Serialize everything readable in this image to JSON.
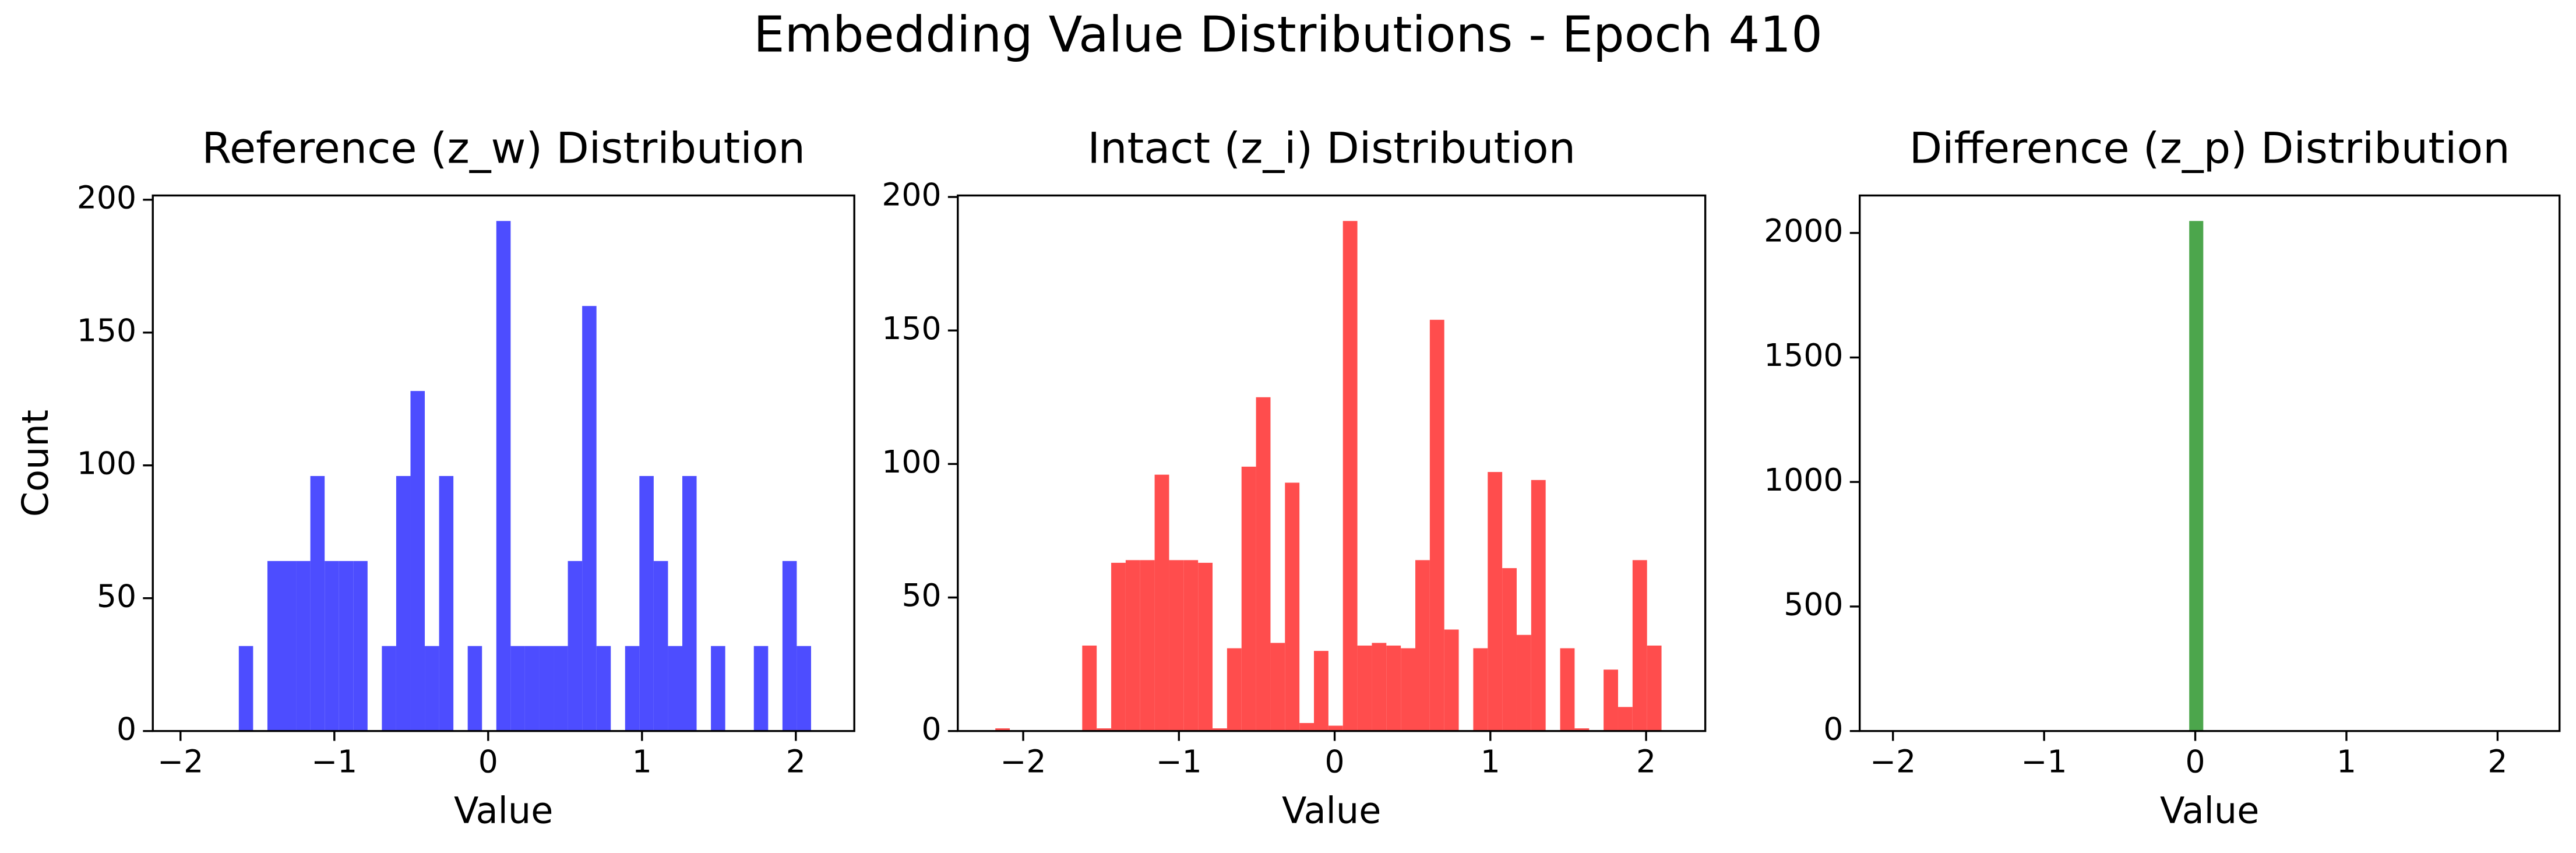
{
  "title": "Embedding Value Distributions - Epoch 410",
  "chart_data": [
    {
      "type": "histogram",
      "title": "Reference (z_w) Distribution",
      "xlabel": "Value",
      "ylabel": "Count",
      "color": "#4d4dff",
      "bins": [
        -1.993,
        -1.9,
        -1.807,
        -1.714,
        -1.621,
        -1.528,
        -1.435,
        -1.342,
        -1.249,
        -1.156,
        -1.063,
        -0.97,
        -0.877,
        -0.784,
        -0.691,
        -0.598,
        -0.505,
        -0.412,
        -0.319,
        -0.226,
        -0.133,
        -0.04,
        0.053,
        0.146,
        0.239,
        0.332,
        0.425,
        0.518,
        0.611,
        0.704,
        0.797,
        0.89,
        0.983,
        1.076,
        1.169,
        1.262,
        1.355,
        1.448,
        1.541,
        1.634,
        1.727,
        1.82,
        1.913,
        2.006,
        2.099
      ],
      "values": [
        0,
        0,
        0,
        0,
        32,
        0,
        64,
        64,
        64,
        96,
        64,
        64,
        64,
        0,
        32,
        96,
        128,
        32,
        96,
        0,
        32,
        0,
        192,
        32,
        32,
        32,
        32,
        64,
        160,
        32,
        0,
        32,
        96,
        64,
        32,
        96,
        0,
        32,
        0,
        0,
        32,
        0,
        64,
        32
      ],
      "xlim": [
        -2.18,
        2.38
      ],
      "ylim": [
        0,
        201.6
      ],
      "xticks": [
        {
          "value": -2,
          "label": "−2"
        },
        {
          "value": -1,
          "label": "−1"
        },
        0,
        1,
        2
      ],
      "yticks": [
        0,
        50,
        100,
        150,
        200
      ]
    },
    {
      "type": "histogram",
      "title": "Intact (z_i) Distribution",
      "xlabel": "Value",
      "color": "#ff4d4d",
      "bins": [
        -2.179,
        -2.086,
        -1.993,
        -1.9,
        -1.807,
        -1.714,
        -1.621,
        -1.528,
        -1.435,
        -1.342,
        -1.249,
        -1.156,
        -1.063,
        -0.97,
        -0.877,
        -0.784,
        -0.691,
        -0.598,
        -0.505,
        -0.412,
        -0.319,
        -0.226,
        -0.133,
        -0.04,
        0.053,
        0.146,
        0.239,
        0.332,
        0.425,
        0.518,
        0.611,
        0.704,
        0.797,
        0.89,
        0.983,
        1.076,
        1.169,
        1.262,
        1.355,
        1.448,
        1.541,
        1.634,
        1.727,
        1.82,
        1.913,
        2.006,
        2.099
      ],
      "values": [
        1,
        0,
        0,
        0,
        0,
        0,
        32,
        1,
        63,
        64,
        64,
        96,
        64,
        64,
        63,
        1,
        31,
        99,
        125,
        33,
        93,
        3,
        30,
        2,
        191,
        32,
        33,
        32,
        31,
        64,
        154,
        38,
        0,
        31,
        97,
        61,
        36,
        94,
        0,
        31,
        1,
        0,
        23,
        9,
        64,
        32
      ],
      "xlim": [
        -2.42,
        2.38
      ],
      "ylim": [
        0,
        200.55
      ],
      "xticks": [
        {
          "value": -2,
          "label": "−2"
        },
        {
          "value": -1,
          "label": "−1"
        },
        0,
        1,
        2
      ],
      "yticks": [
        0,
        50,
        100,
        150,
        200
      ]
    },
    {
      "type": "histogram",
      "title": "Difference (z_p) Distribution",
      "xlabel": "Value",
      "color": "#4ca64c",
      "bins": [
        -0.04,
        0.053
      ],
      "values": [
        2048
      ],
      "xlim": [
        -2.22,
        2.41
      ],
      "ylim": [
        0,
        2150.4
      ],
      "xticks": [
        {
          "value": -2,
          "label": "−2"
        },
        {
          "value": -1,
          "label": "−1"
        },
        0,
        1,
        2
      ],
      "yticks": [
        0,
        500,
        1000,
        1500,
        2000
      ]
    }
  ]
}
